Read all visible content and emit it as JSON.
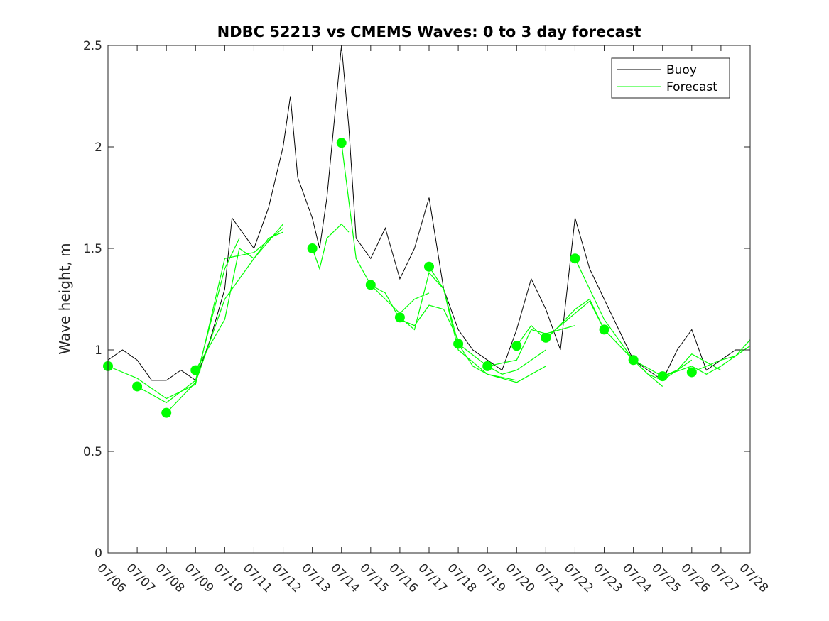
{
  "chart_data": {
    "type": "line",
    "title": "NDBC 52213 vs CMEMS Waves: 0 to 3 day forecast",
    "xlabel": "",
    "ylabel": "Wave height, m",
    "xlim": [
      "07/06",
      "07/28"
    ],
    "ylim": [
      0,
      2.5
    ],
    "yticks": [
      0,
      0.5,
      1,
      1.5,
      2,
      2.5
    ],
    "yticklabels": [
      "0",
      "0.5",
      "1",
      "1.5",
      "2",
      "2.5"
    ],
    "xticklabels": [
      "07/06",
      "07/07",
      "07/08",
      "07/09",
      "07/10",
      "07/11",
      "07/12",
      "07/13",
      "07/14",
      "07/15",
      "07/16",
      "07/17",
      "07/18",
      "07/19",
      "07/20",
      "07/21",
      "07/22",
      "07/23",
      "07/24",
      "07/25",
      "07/26",
      "07/27",
      "07/28"
    ],
    "grid": false,
    "legend": {
      "position": "top-right",
      "entries": [
        "Buoy",
        "Forecast"
      ]
    },
    "colors": {
      "buoy": "#000000",
      "forecast": "#00ff00"
    },
    "series": [
      {
        "name": "Buoy",
        "x": [
          "07/06",
          "07/06 12:00",
          "07/07",
          "07/07 12:00",
          "07/08",
          "07/08 12:00",
          "07/09",
          "07/09 12:00",
          "07/10",
          "07/10 06:00",
          "07/10 12:00",
          "07/11",
          "07/11 12:00",
          "07/12",
          "07/12 06:00",
          "07/12 12:00",
          "07/13",
          "07/13 06:00",
          "07/13 12:00",
          "07/14",
          "07/14 06:00",
          "07/14 12:00",
          "07/15",
          "07/15 12:00",
          "07/16",
          "07/16 12:00",
          "07/17",
          "07/17 12:00",
          "07/18",
          "07/18 12:00",
          "07/19",
          "07/19 12:00",
          "07/20",
          "07/20 12:00",
          "07/21",
          "07/21 12:00",
          "07/22",
          "07/22 12:00",
          "07/23",
          "07/23 12:00",
          "07/24",
          "07/24 12:00",
          "07/25",
          "07/25 12:00",
          "07/26",
          "07/26 12:00",
          "07/27",
          "07/27 12:00",
          "07/28"
        ],
        "y": [
          0.95,
          1.0,
          0.95,
          0.85,
          0.85,
          0.9,
          0.85,
          1.05,
          1.3,
          1.65,
          1.6,
          1.5,
          1.7,
          2.0,
          2.25,
          1.85,
          1.65,
          1.5,
          1.75,
          2.5,
          2.1,
          1.55,
          1.45,
          1.6,
          1.35,
          1.5,
          1.75,
          1.3,
          1.1,
          1.0,
          0.95,
          0.9,
          1.1,
          1.35,
          1.2,
          1.0,
          1.65,
          1.4,
          1.25,
          1.1,
          0.95,
          0.9,
          0.85,
          1.0,
          1.1,
          0.9,
          0.95,
          1.0,
          1.0
        ]
      },
      {
        "name": "Forecast",
        "runs": [
          {
            "x": [
              "07/06",
              "07/07",
              "07/08",
              "07/09",
              "07/10",
              "07/11",
              "07/12"
            ],
            "y": [
              0.92,
              0.86,
              0.76,
              0.83,
              1.45,
              1.48,
              1.6
            ]
          },
          {
            "x": [
              "07/07",
              "07/08",
              "07/09",
              "07/10",
              "07/10 12:00"
            ],
            "y": [
              0.82,
              0.74,
              0.85,
              1.4,
              1.55
            ]
          },
          {
            "x": [
              "07/08",
              "07/09",
              "07/10",
              "07/11",
              "07/12"
            ],
            "y": [
              0.69,
              0.84,
              1.25,
              1.45,
              1.62
            ]
          },
          {
            "x": [
              "07/09",
              "07/10",
              "07/10 12:00",
              "07/11",
              "07/11 12:00",
              "07/12"
            ],
            "y": [
              0.9,
              1.15,
              1.5,
              1.45,
              1.55,
              1.58
            ]
          },
          {
            "x": [
              "07/13",
              "07/13 06:00",
              "07/13 12:00",
              "07/14",
              "07/14 06:00"
            ],
            "y": [
              1.5,
              1.4,
              1.55,
              1.62,
              1.58
            ]
          },
          {
            "x": [
              "07/14",
              "07/14 12:00",
              "07/15",
              "07/15 12:00",
              "07/16",
              "07/16 12:00",
              "07/17"
            ],
            "y": [
              2.02,
              1.45,
              1.32,
              1.25,
              1.18,
              1.25,
              1.28
            ]
          },
          {
            "x": [
              "07/15",
              "07/15 12:00",
              "07/16",
              "07/16 12:00",
              "07/17",
              "07/17 12:00",
              "07/18"
            ],
            "y": [
              1.32,
              1.28,
              1.15,
              1.12,
              1.22,
              1.2,
              1.05
            ]
          },
          {
            "x": [
              "07/16",
              "07/16 12:00",
              "07/17",
              "07/17 12:00",
              "07/18",
              "07/19",
              "07/20"
            ],
            "y": [
              1.16,
              1.1,
              1.38,
              1.3,
              1.0,
              0.88,
              0.85
            ]
          },
          {
            "x": [
              "07/17",
              "07/17 12:00",
              "07/18",
              "07/18 12:00",
              "07/19",
              "07/20",
              "07/21"
            ],
            "y": [
              1.41,
              1.3,
              1.03,
              0.92,
              0.88,
              0.84,
              0.92
            ]
          },
          {
            "x": [
              "07/18",
              "07/19",
              "07/19 12:00",
              "07/20",
              "07/21"
            ],
            "y": [
              1.03,
              0.92,
              0.88,
              0.9,
              1.0
            ]
          },
          {
            "x": [
              "07/19",
              "07/20",
              "07/20 12:00",
              "07/21",
              "07/22"
            ],
            "y": [
              0.92,
              0.95,
              1.1,
              1.08,
              1.12
            ]
          },
          {
            "x": [
              "07/20",
              "07/20 12:00",
              "07/21",
              "07/22",
              "07/22 12:00",
              "07/23"
            ],
            "y": [
              1.02,
              1.12,
              1.05,
              1.2,
              1.25,
              1.1
            ]
          },
          {
            "x": [
              "07/21",
              "07/22",
              "07/22 12:00",
              "07/23",
              "07/24"
            ],
            "y": [
              1.06,
              1.18,
              1.24,
              1.1,
              0.95
            ]
          },
          {
            "x": [
              "07/22",
              "07/22 12:00",
              "07/23",
              "07/24",
              "07/24 12:00",
              "07/25"
            ],
            "y": [
              1.45,
              1.3,
              1.15,
              0.95,
              0.88,
              0.82
            ]
          },
          {
            "x": [
              "07/23",
              "07/24",
              "07/24 12:00",
              "07/25",
              "07/26"
            ],
            "y": [
              1.1,
              0.95,
              0.88,
              0.85,
              0.95
            ]
          },
          {
            "x": [
              "07/24",
              "07/25",
              "07/25 12:00",
              "07/26",
              "07/27"
            ],
            "y": [
              0.95,
              0.87,
              0.9,
              0.98,
              0.9
            ]
          },
          {
            "x": [
              "07/25",
              "07/26",
              "07/26 12:00",
              "07/27",
              "07/28"
            ],
            "y": [
              0.87,
              0.92,
              0.88,
              0.92,
              1.02
            ]
          },
          {
            "x": [
              "07/26",
              "07/26 12:00",
              "07/27",
              "07/27 12:00",
              "07/28"
            ],
            "y": [
              0.89,
              0.92,
              0.95,
              0.97,
              1.05
            ]
          }
        ]
      }
    ],
    "forecast_start_markers": {
      "x": [
        "07/06",
        "07/07",
        "07/08",
        "07/09",
        "07/13",
        "07/14",
        "07/15",
        "07/16",
        "07/17",
        "07/18",
        "07/19",
        "07/20",
        "07/21",
        "07/22",
        "07/23",
        "07/24",
        "07/25",
        "07/26"
      ],
      "y": [
        0.92,
        0.82,
        0.69,
        0.9,
        1.5,
        2.02,
        1.32,
        1.16,
        1.41,
        1.03,
        0.92,
        1.02,
        1.06,
        1.45,
        1.1,
        0.95,
        0.87,
        0.89
      ]
    }
  }
}
